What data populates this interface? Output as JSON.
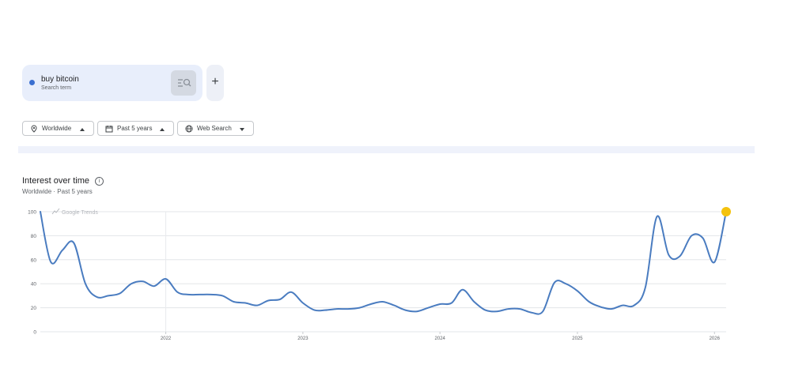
{
  "search_term": {
    "name": "buy bitcoin",
    "subtitle": "Search term",
    "color": "#3b6fd0"
  },
  "add_button": {
    "label": "+"
  },
  "filters": {
    "region": {
      "label": "Worldwide",
      "icon": "location-pin-icon"
    },
    "time": {
      "label": "Past 5 years",
      "icon": "calendar-icon"
    },
    "property": {
      "label": "Web Search",
      "icon": "globe-icon"
    }
  },
  "section": {
    "title": "Interest over time",
    "subtitle": "Worldwide · Past 5 years",
    "watermark": "Google Trends",
    "info_icon": "i"
  },
  "chart_data": {
    "type": "line",
    "ylim": [
      0,
      100
    ],
    "yticks": [
      "0",
      "20",
      "40",
      "60",
      "80",
      "100"
    ],
    "xticks": [
      "2022",
      "2023",
      "2024",
      "2025",
      "2026"
    ],
    "grid": true,
    "line_color": "#4a7cc0",
    "marker_color": "#f4c20d",
    "series": [
      {
        "x": [
          "2021-02",
          "2021-03",
          "2021-04",
          "2021-05",
          "2021-06",
          "2021-07",
          "2021-08",
          "2021-09",
          "2021-10",
          "2021-11",
          "2021-12",
          "2022-01",
          "2022-02",
          "2022-03",
          "2022-04",
          "2022-05",
          "2022-06",
          "2022-07",
          "2022-08",
          "2022-09",
          "2022-10",
          "2022-11",
          "2022-12",
          "2023-01",
          "2023-02",
          "2023-03",
          "2023-04",
          "2023-05",
          "2023-06",
          "2023-07",
          "2023-08",
          "2023-09",
          "2023-10",
          "2023-11",
          "2023-12",
          "2024-01",
          "2024-02",
          "2024-03",
          "2024-04",
          "2024-05",
          "2024-06",
          "2024-07",
          "2024-08",
          "2024-09",
          "2024-10",
          "2024-11",
          "2024-12",
          "2025-01",
          "2025-02",
          "2025-03",
          "2025-04",
          "2025-05",
          "2025-06",
          "2025-07",
          "2025-08",
          "2025-09",
          "2025-10",
          "2025-11",
          "2025-12",
          "2026-01",
          "2026-02"
        ],
        "values": [
          100,
          58,
          68,
          74,
          40,
          29,
          30,
          32,
          40,
          42,
          38,
          44,
          33,
          31,
          31,
          31,
          30,
          25,
          24,
          22,
          26,
          27,
          33,
          24,
          18,
          18,
          19,
          19,
          20,
          23,
          25,
          22,
          18,
          17,
          20,
          23,
          24,
          35,
          25,
          18,
          17,
          19,
          19,
          16,
          17,
          41,
          40,
          34,
          25,
          21,
          19,
          22,
          22,
          37,
          96,
          64,
          63,
          80,
          78,
          58,
          100
        ]
      }
    ]
  }
}
